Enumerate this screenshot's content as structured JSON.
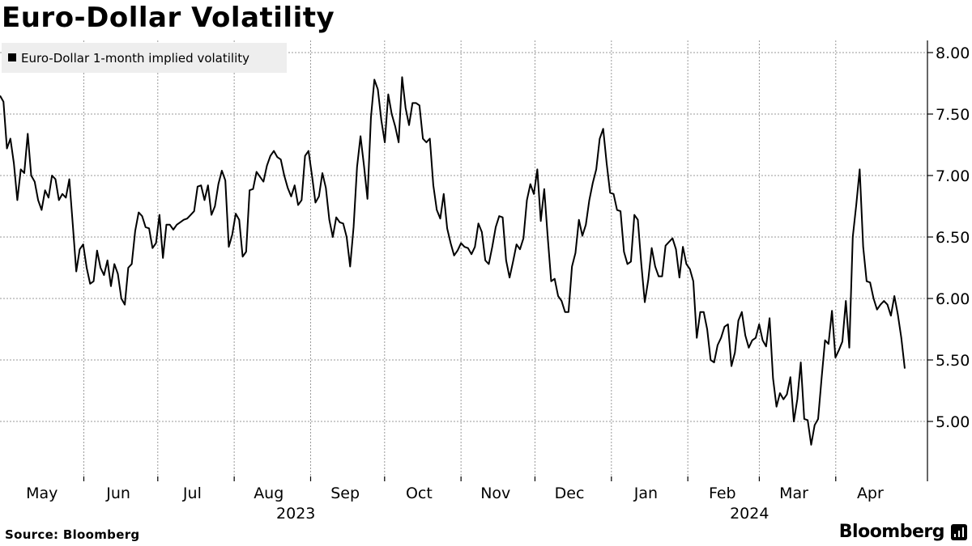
{
  "title": "Euro-Dollar Volatility",
  "footer": {
    "source": "Source: Bloomberg",
    "brand": "Bloomberg"
  },
  "chart_data": {
    "type": "line",
    "title": "Euro-Dollar Volatility",
    "legend": {
      "label": "Euro-Dollar 1-month implied volatility",
      "placement": "top-left"
    },
    "ylim": [
      4.6,
      8.0
    ],
    "yticks": [
      5.0,
      5.5,
      6.0,
      6.5,
      7.0,
      7.5,
      8.0
    ],
    "ytick_labels": [
      "5.00",
      "5.50",
      "6.00",
      "6.50",
      "7.00",
      "7.50",
      "8.00"
    ],
    "grid": true,
    "x_start": "2023-04-28",
    "x_end": "2024-04-29",
    "month_labels": [
      {
        "label": "May",
        "date": "2023-05-15"
      },
      {
        "label": "Jun",
        "date": "2023-06-15"
      },
      {
        "label": "Jul",
        "date": "2023-07-15"
      },
      {
        "label": "Aug",
        "date": "2023-08-15"
      },
      {
        "label": "Sep",
        "date": "2023-09-15"
      },
      {
        "label": "Oct",
        "date": "2023-10-15"
      },
      {
        "label": "Nov",
        "date": "2023-11-15"
      },
      {
        "label": "Dec",
        "date": "2023-12-15"
      },
      {
        "label": "Jan",
        "date": "2024-01-15"
      },
      {
        "label": "Feb",
        "date": "2024-02-15"
      },
      {
        "label": "Mar",
        "date": "2024-03-15"
      },
      {
        "label": "Apr",
        "date": "2024-04-15"
      }
    ],
    "month_boundaries": [
      "2023-06-01",
      "2023-07-01",
      "2023-08-01",
      "2023-09-01",
      "2023-10-01",
      "2023-11-01",
      "2023-12-01",
      "2024-01-01",
      "2024-02-01",
      "2024-03-01",
      "2024-04-01"
    ],
    "year_labels": [
      {
        "label": "2023",
        "date": "2023-08-26"
      },
      {
        "label": "2024",
        "date": "2024-02-26"
      }
    ],
    "series": [
      {
        "name": "Euro-Dollar 1-month implied volatility",
        "values": [
          7.65,
          7.6,
          7.22,
          7.3,
          7.1,
          6.8,
          7.05,
          7.02,
          7.34,
          7.0,
          6.95,
          6.8,
          6.72,
          6.88,
          6.82,
          7.0,
          6.97,
          6.8,
          6.85,
          6.82,
          6.97,
          6.6,
          6.22,
          6.4,
          6.44,
          6.25,
          6.12,
          6.14,
          6.39,
          6.25,
          6.19,
          6.31,
          6.1,
          6.28,
          6.2,
          6.0,
          5.95,
          6.25,
          6.28,
          6.55,
          6.7,
          6.67,
          6.58,
          6.57,
          6.41,
          6.45,
          6.68,
          6.33,
          6.6,
          6.6,
          6.56,
          6.6,
          6.62,
          6.64,
          6.65,
          6.68,
          6.71,
          6.91,
          6.92,
          6.8,
          6.92,
          6.68,
          6.75,
          6.93,
          7.04,
          6.96,
          6.42,
          6.52,
          6.69,
          6.64,
          6.34,
          6.38,
          6.88,
          6.89,
          7.03,
          6.99,
          6.95,
          7.08,
          7.16,
          7.2,
          7.15,
          7.13,
          7.0,
          6.9,
          6.83,
          6.92,
          6.76,
          6.8,
          7.16,
          7.2,
          7.0,
          6.78,
          6.83,
          7.02,
          6.9,
          6.64,
          6.5,
          6.66,
          6.62,
          6.61,
          6.5,
          6.26,
          6.58,
          7.07,
          7.32,
          7.08,
          6.81,
          7.47,
          7.78,
          7.7,
          7.45,
          7.27,
          7.66,
          7.5,
          7.4,
          7.27,
          7.8,
          7.55,
          7.41,
          7.59,
          7.59,
          7.57,
          7.3,
          7.27,
          7.3,
          6.92,
          6.72,
          6.65,
          6.85,
          6.57,
          6.45,
          6.35,
          6.39,
          6.45,
          6.42,
          6.41,
          6.36,
          6.42,
          6.61,
          6.54,
          6.31,
          6.28,
          6.42,
          6.58,
          6.67,
          6.66,
          6.31,
          6.17,
          6.3,
          6.44,
          6.4,
          6.49,
          6.8,
          6.93,
          6.85,
          7.05,
          6.63,
          6.89,
          6.5,
          6.14,
          6.16,
          6.02,
          5.98,
          5.89,
          5.89,
          6.26,
          6.37,
          6.64,
          6.51,
          6.6,
          6.8,
          6.94,
          7.05,
          7.3,
          7.38,
          7.1,
          6.86,
          6.85,
          6.72,
          6.71,
          6.38,
          6.28,
          6.3,
          6.68,
          6.64,
          6.28,
          5.97,
          6.15,
          6.41,
          6.26,
          6.18,
          6.18,
          6.43,
          6.46,
          6.49,
          6.4,
          6.17,
          6.42,
          6.28,
          6.24,
          6.14,
          5.68,
          5.89,
          5.89,
          5.75,
          5.5,
          5.48,
          5.62,
          5.68,
          5.77,
          5.79,
          5.45,
          5.56,
          5.82,
          5.89,
          5.7,
          5.6,
          5.66,
          5.68,
          5.79,
          5.66,
          5.61,
          5.84,
          5.35,
          5.12,
          5.23,
          5.18,
          5.22,
          5.36,
          5.0,
          5.18,
          5.48,
          5.02,
          5.01,
          4.81,
          4.97,
          5.02,
          5.35,
          5.66,
          5.63,
          5.9,
          5.52,
          5.58,
          5.65,
          5.98,
          5.6,
          6.5,
          6.76,
          7.05,
          6.42,
          6.14,
          6.13,
          6.0,
          5.91,
          5.95,
          5.98,
          5.95,
          5.86,
          6.02,
          5.87,
          5.68,
          5.43
        ]
      }
    ]
  }
}
